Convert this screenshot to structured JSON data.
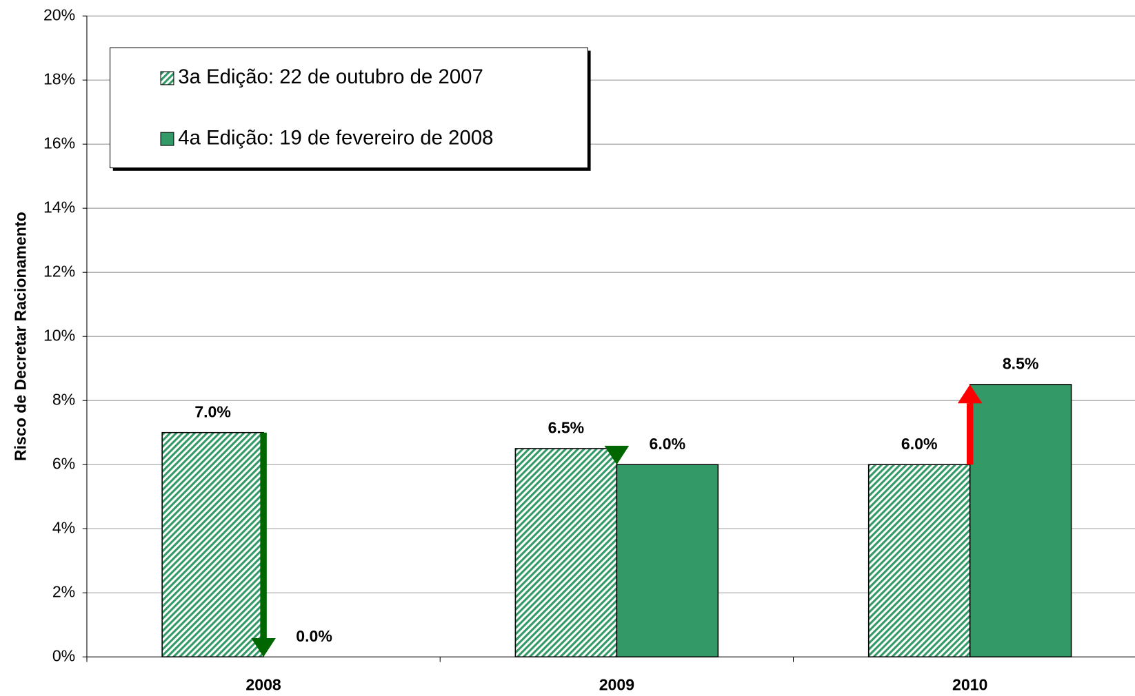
{
  "chart_data": {
    "type": "bar",
    "y_label": "Risco de Decretar Racionamento",
    "categories": [
      "2008",
      "2009",
      "2010"
    ],
    "series": [
      {
        "name": "3a Edição: 22 de outubro de 2007",
        "color": "#339966",
        "pattern": "hatched",
        "values": [
          7.0,
          6.5,
          6.0
        ],
        "value_labels": [
          "7.0%",
          "6.5%",
          "6.0%"
        ]
      },
      {
        "name": "4a Edição: 19 de fevereiro de 2008",
        "color": "#339966",
        "values": [
          0.0,
          6.0,
          8.5
        ],
        "value_labels": [
          "0.0%",
          "6.0%",
          "8.5%"
        ]
      }
    ],
    "ylim": [
      0,
      20
    ],
    "yticks": [
      {
        "value": 0,
        "label": "0%"
      },
      {
        "value": 2,
        "label": "2%"
      },
      {
        "value": 4,
        "label": "4%"
      },
      {
        "value": 6,
        "label": "6%"
      },
      {
        "value": 8,
        "label": "8%"
      },
      {
        "value": 10,
        "label": "10%"
      },
      {
        "value": 12,
        "label": "12%"
      },
      {
        "value": 14,
        "label": "14%"
      },
      {
        "value": 16,
        "label": "16%"
      },
      {
        "value": 18,
        "label": "18%"
      },
      {
        "value": 20,
        "label": "20%"
      }
    ],
    "grid": true,
    "legend": "upper left"
  }
}
